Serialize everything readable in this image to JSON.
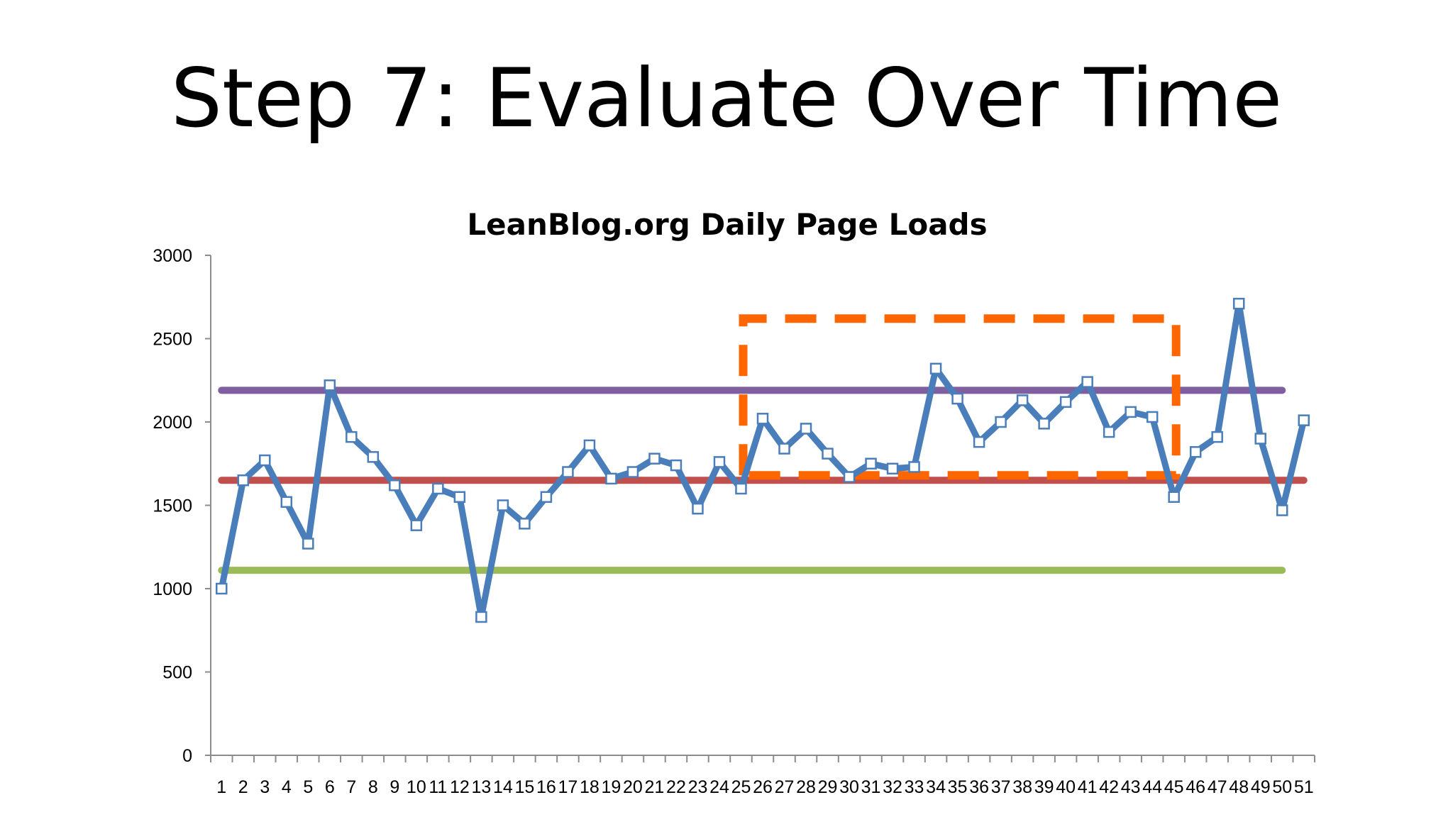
{
  "slide": {
    "title": "Step 7: Evaluate Over Time"
  },
  "chart_data": {
    "type": "line",
    "title": "LeanBlog.org Daily Page Loads",
    "xlabel": "",
    "ylabel": "",
    "ylim": [
      0,
      3000
    ],
    "yticks": [
      0,
      500,
      1000,
      1500,
      2000,
      2500,
      3000
    ],
    "x": [
      1,
      2,
      3,
      4,
      5,
      6,
      7,
      8,
      9,
      10,
      11,
      12,
      13,
      14,
      15,
      16,
      17,
      18,
      19,
      20,
      21,
      22,
      23,
      24,
      25,
      26,
      27,
      28,
      29,
      30,
      31,
      32,
      33,
      34,
      35,
      36,
      37,
      38,
      39,
      40,
      41,
      42,
      43,
      44,
      45,
      46,
      47,
      48,
      49,
      50,
      51
    ],
    "series": [
      {
        "color": "#4a7ebb",
        "values": [
          1000,
          1650,
          1770,
          1520,
          1270,
          2220,
          1910,
          1790,
          1620,
          1380,
          1600,
          1550,
          830,
          1500,
          1390,
          1550,
          1700,
          1860,
          1660,
          1700,
          1780,
          1740,
          1480,
          1760,
          1600,
          2020,
          1840,
          1960,
          1810,
          1670,
          1750,
          1720,
          1730,
          2320,
          2140,
          1880,
          2000,
          2130,
          1990,
          2120,
          2240,
          1940,
          2060,
          2030,
          1550,
          1820,
          1910,
          2710,
          1900,
          1470,
          2010
        ]
      }
    ],
    "reference_lines": [
      {
        "value": 2190,
        "color": "#7f5f9f",
        "x_end": 50
      },
      {
        "value": 1650,
        "color": "#c0504d",
        "x_end": 51
      },
      {
        "value": 1110,
        "color": "#9bbb59",
        "x_end": 50
      }
    ],
    "highlight_box": {
      "color": "#ff6600",
      "x_from": 25,
      "x_to": 45,
      "y_from": 1680,
      "y_to": 2620
    },
    "grid": false,
    "legend": "none"
  }
}
